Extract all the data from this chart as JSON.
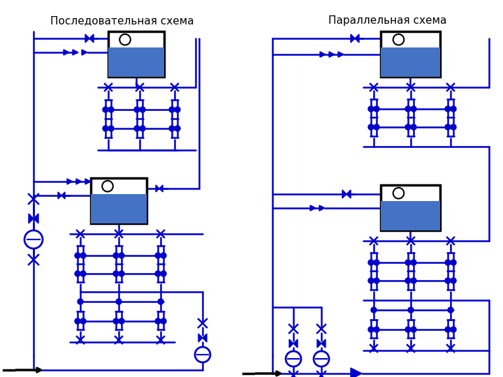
{
  "title_left": "Последовательная схема",
  "title_right": "Параллельная схема",
  "lc": "#0000CC",
  "lw": 1.8,
  "bg": "#FFFFFF",
  "tank_water": "#4472C4",
  "tank_border": "#000000",
  "title_fs": 11
}
